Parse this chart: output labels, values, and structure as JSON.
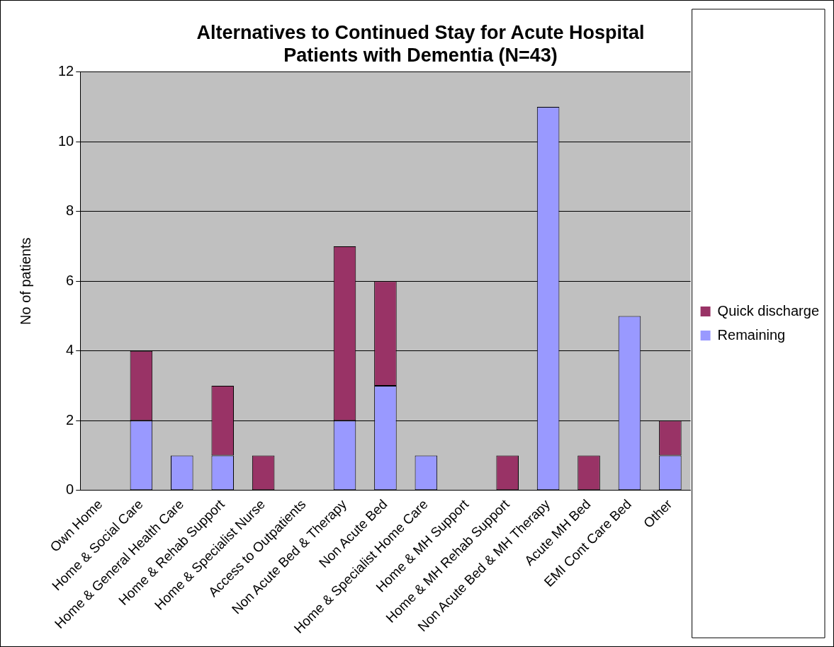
{
  "chart_data": {
    "type": "bar",
    "title": "Alternatives to Continued Stay for Acute Hospital Patients with Dementia (N=43)",
    "ylabel": "No of patients",
    "categories": [
      "Own Home",
      "Home & Social Care",
      "Home & General Health Care",
      "Home & Rehab Support",
      "Home & Specialist Nurse",
      "Access to Outpatients",
      "Non Acute Bed & Therapy",
      "Non Acute Bed",
      "Home & Specialist Home Care",
      "Home & MH Support",
      "Home & MH Rehab Support",
      "Non Acute Bed & MH Therapy",
      "Acute MH Bed",
      "EMI Cont Care Bed",
      "Other"
    ],
    "stacked": true,
    "series": [
      {
        "name": "Remaining",
        "color": "#9999ff",
        "values": [
          0,
          2,
          1,
          1,
          0,
          0,
          2,
          3,
          1,
          0,
          0,
          11,
          0,
          5,
          1
        ]
      },
      {
        "name": "Quick discharge",
        "color": "#993366",
        "values": [
          0,
          2,
          0,
          2,
          1,
          0,
          5,
          3,
          0,
          0,
          1,
          0,
          1,
          0,
          1
        ]
      }
    ],
    "ylim": [
      0,
      12
    ],
    "yticks": [
      0,
      2,
      4,
      6,
      8,
      10,
      12
    ],
    "grid": "y",
    "legend": "right"
  }
}
